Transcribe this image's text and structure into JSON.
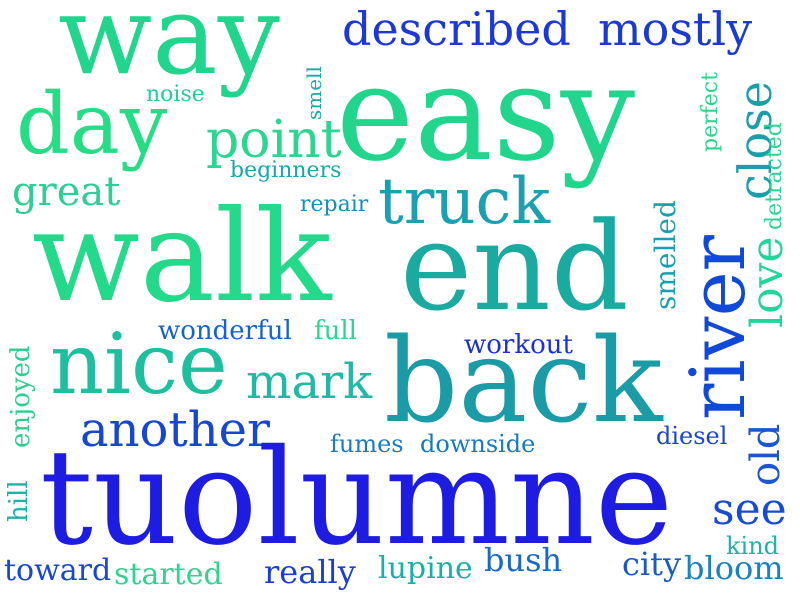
{
  "cloud": {
    "words": [
      {
        "key": "way",
        "text": "way",
        "color": "#21d68c"
      },
      {
        "key": "easy",
        "text": "easy",
        "color": "#21d68c"
      },
      {
        "key": "described",
        "text": "described",
        "color": "#1c38d8"
      },
      {
        "key": "mostly",
        "text": "mostly",
        "color": "#1a3ad2"
      },
      {
        "key": "day",
        "text": "day",
        "color": "#25dd84"
      },
      {
        "key": "point",
        "text": "point",
        "color": "#2bd690"
      },
      {
        "key": "noise",
        "text": "noise",
        "color": "#29c79c"
      },
      {
        "key": "smell",
        "text": "smell",
        "color": "#1aa9a6"
      },
      {
        "key": "perfect",
        "text": "perfect",
        "color": "#27d78a"
      },
      {
        "key": "close",
        "text": "close",
        "color": "#1b9ea8"
      },
      {
        "key": "great",
        "text": "great",
        "color": "#2dcf95"
      },
      {
        "key": "beginners",
        "text": "beginners",
        "color": "#19a7ad"
      },
      {
        "key": "truck",
        "text": "truck",
        "color": "#1aa0b1"
      },
      {
        "key": "repair",
        "text": "repair",
        "color": "#168fb7"
      },
      {
        "key": "detracted",
        "text": "detracted",
        "color": "#2bd492"
      },
      {
        "key": "walk",
        "text": "walk",
        "color": "#24d98a"
      },
      {
        "key": "end",
        "text": "end",
        "color": "#1aaa9f"
      },
      {
        "key": "river",
        "text": "river",
        "color": "#1049d8"
      },
      {
        "key": "smelled",
        "text": "smelled",
        "color": "#18a0b0"
      },
      {
        "key": "love",
        "text": "love",
        "color": "#22d59a"
      },
      {
        "key": "enjoyed",
        "text": "enjoyed",
        "color": "#2cd08e"
      },
      {
        "key": "wonderful",
        "text": "wonderful",
        "color": "#1563cf"
      },
      {
        "key": "full",
        "text": "full",
        "color": "#2bd690"
      },
      {
        "key": "workout",
        "text": "workout",
        "color": "#1c30d6"
      },
      {
        "key": "nice",
        "text": "nice",
        "color": "#1ebf9f"
      },
      {
        "key": "mark",
        "text": "mark",
        "color": "#21b8a7"
      },
      {
        "key": "back",
        "text": "back",
        "color": "#1b9ba6"
      },
      {
        "key": "another",
        "text": "another",
        "color": "#1547d0"
      },
      {
        "key": "old",
        "text": "old",
        "color": "#1c57d1"
      },
      {
        "key": "fumes",
        "text": "fumes",
        "color": "#1b7ac7"
      },
      {
        "key": "downside",
        "text": "downside",
        "color": "#1679c4"
      },
      {
        "key": "diesel",
        "text": "diesel",
        "color": "#1a44d3"
      },
      {
        "key": "hill",
        "text": "hill",
        "color": "#1ab5a6"
      },
      {
        "key": "tuolumne",
        "text": "tuolumne",
        "color": "#1d1ce0"
      },
      {
        "key": "see",
        "text": "see",
        "color": "#174bd3"
      },
      {
        "key": "kind",
        "text": "kind",
        "color": "#20b2a8"
      },
      {
        "key": "toward",
        "text": "toward",
        "color": "#1a46d5"
      },
      {
        "key": "started",
        "text": "started",
        "color": "#2bd690"
      },
      {
        "key": "really",
        "text": "really",
        "color": "#1a3dd2"
      },
      {
        "key": "lupine",
        "text": "lupine",
        "color": "#1ab0a7"
      },
      {
        "key": "bush",
        "text": "bush",
        "color": "#176acc"
      },
      {
        "key": "city",
        "text": "city",
        "color": "#195ac7"
      },
      {
        "key": "bloom",
        "text": "bloom",
        "color": "#1784c1"
      }
    ]
  }
}
